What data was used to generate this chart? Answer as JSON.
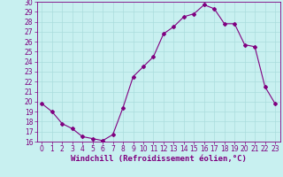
{
  "xlabel": "Windchill (Refroidissement éolien,°C)",
  "x": [
    0,
    1,
    2,
    3,
    4,
    5,
    6,
    7,
    8,
    9,
    10,
    11,
    12,
    13,
    14,
    15,
    16,
    17,
    18,
    19,
    20,
    21,
    22,
    23
  ],
  "y": [
    19.8,
    19.0,
    17.8,
    17.3,
    16.5,
    16.3,
    16.1,
    16.7,
    19.4,
    22.5,
    23.5,
    24.5,
    26.8,
    27.5,
    28.5,
    28.8,
    29.7,
    29.3,
    27.8,
    27.8,
    25.7,
    25.5,
    21.5,
    19.8
  ],
  "ylim": [
    16,
    30
  ],
  "xlim_min": -0.5,
  "xlim_max": 23.5,
  "yticks": [
    16,
    17,
    18,
    19,
    20,
    21,
    22,
    23,
    24,
    25,
    26,
    27,
    28,
    29,
    30
  ],
  "xticks": [
    0,
    1,
    2,
    3,
    4,
    5,
    6,
    7,
    8,
    9,
    10,
    11,
    12,
    13,
    14,
    15,
    16,
    17,
    18,
    19,
    20,
    21,
    22,
    23
  ],
  "line_color": "#800080",
  "marker": "D",
  "marker_size": 2,
  "background_color": "#c8f0f0",
  "grid_color": "#aadddd",
  "tick_color": "#800080",
  "label_color": "#800080",
  "tick_fontsize": 5.5,
  "label_fontsize": 6.5
}
